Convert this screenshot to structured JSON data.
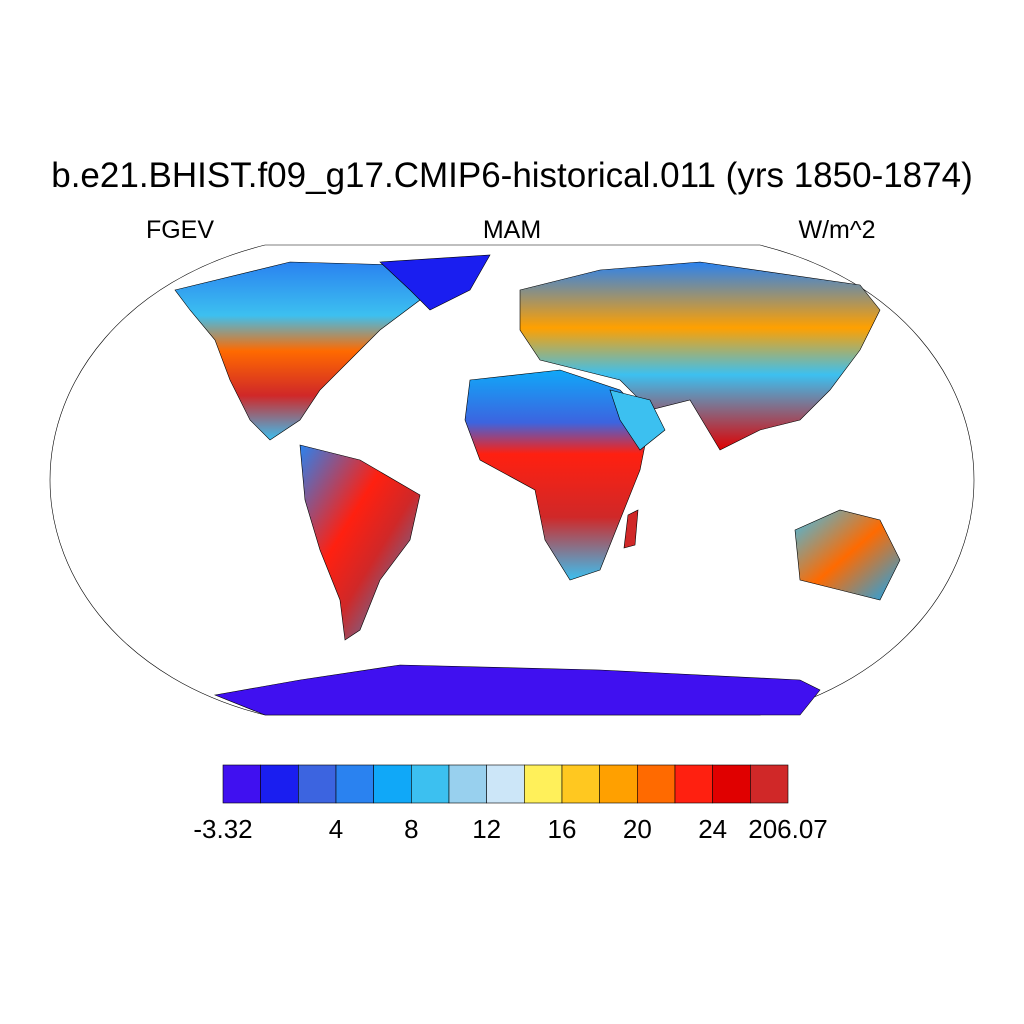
{
  "header": {
    "title": "b.e21.BHIST.f09_g17.CMIP6-historical.011 (yrs 1850-1874)",
    "left": "FGEV",
    "center": "MAM",
    "right": "W/m^2"
  },
  "colorbar": {
    "colors": [
      "#4010f0",
      "#1a1ef0",
      "#3c64e0",
      "#2a82f0",
      "#10a8f8",
      "#3cc0f0",
      "#98d0ee",
      "#cce6f8",
      "#fff05a",
      "#ffc820",
      "#ffa000",
      "#ff6a00",
      "#ff2010",
      "#e00000",
      "#d02828"
    ],
    "labels": [
      -3.32,
      4,
      8,
      12,
      16,
      20,
      24,
      206.07
    ]
  }
}
